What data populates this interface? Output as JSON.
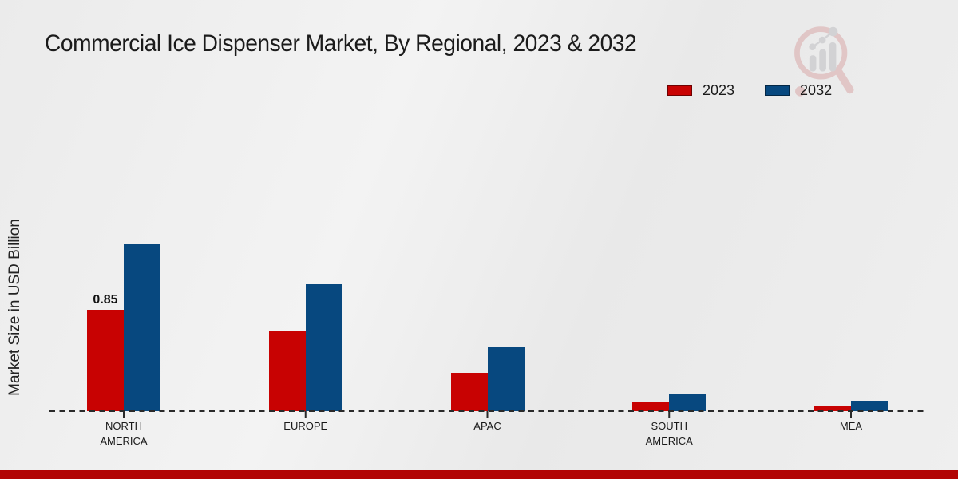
{
  "title": "Commercial Ice Dispenser Market, By Regional, 2023 & 2032",
  "y_axis_label": "Market Size in USD Billion",
  "legend": {
    "items": [
      {
        "label": "2023",
        "color": "#c80202",
        "border": "#8a0000"
      },
      {
        "label": "2032",
        "color": "#07487f",
        "border": "#032e52"
      }
    ]
  },
  "chart_data": {
    "type": "bar",
    "title": "Commercial Ice Dispenser Market, By Regional, 2023 & 2032",
    "xlabel": "",
    "ylabel": "Market Size in USD Billion",
    "categories": [
      "NORTH AMERICA",
      "EUROPE",
      "APAC",
      "SOUTH AMERICA",
      "MEA"
    ],
    "series": [
      {
        "name": "2023",
        "color": "#c80202",
        "values": [
          0.85,
          0.68,
          0.32,
          0.08,
          0.05
        ]
      },
      {
        "name": "2032",
        "color": "#07487f",
        "values": [
          1.4,
          1.07,
          0.54,
          0.15,
          0.09
        ]
      }
    ],
    "data_labels": [
      {
        "series": "2023",
        "category": "NORTH AMERICA",
        "text": "0.85"
      }
    ],
    "ylim": [
      0,
      1.5
    ],
    "grid": false,
    "baseline_style": "dashed",
    "axis_color": "#2a2a2a",
    "legend_position": "top-right"
  },
  "watermark": {
    "name": "magnifier-bar-chart-logo",
    "ring_color": "#d9a8a8",
    "bars_color": "#bfbfc3"
  },
  "footer": {
    "accent_bar_color": "#b20404"
  }
}
